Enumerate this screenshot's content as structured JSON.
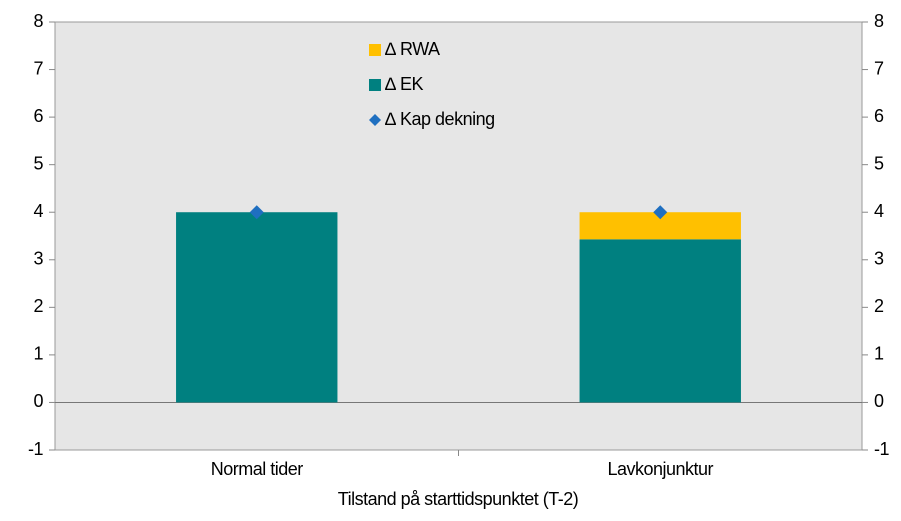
{
  "chart_data": {
    "type": "bar",
    "stacked": true,
    "x_label": "Tilstand på starttidspunktet (T-2)",
    "categories": [
      "Normal tider",
      "Lavkonjunktur"
    ],
    "series": [
      {
        "name": "∆ RWA",
        "color": "#ffc000",
        "type": "bar",
        "values": [
          0,
          0.57
        ]
      },
      {
        "name": "∆ EK",
        "color": "#008080",
        "type": "bar",
        "values": [
          4.0,
          3.43
        ]
      },
      {
        "name": "∆ Kap dekning",
        "color": "#1f6fc0",
        "type": "scatter",
        "values": [
          4.0,
          4.0
        ]
      }
    ],
    "ylim": [
      -1,
      8
    ],
    "yticks": [
      -1,
      0,
      1,
      2,
      3,
      4,
      5,
      6,
      7,
      8
    ],
    "y2lim": [
      -1,
      8
    ],
    "y2ticks": [
      -1,
      0,
      1,
      2,
      3,
      4,
      5,
      6,
      7,
      8
    ],
    "grid": false,
    "background": "#e6e6e6"
  }
}
